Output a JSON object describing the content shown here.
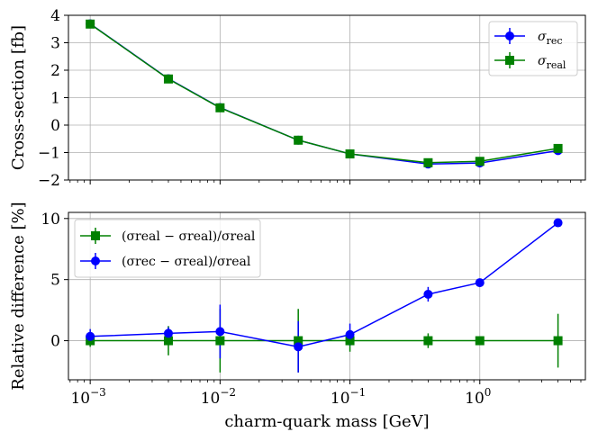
{
  "chart_data": [
    {
      "type": "line",
      "panel": "top",
      "title": "",
      "xlabel": "",
      "ylabel": "Cross-section [fb]",
      "xscale": "log",
      "xlim": [
        0.00068,
        6.5
      ],
      "ylim": [
        -2,
        4
      ],
      "yticks": [
        -2,
        -1,
        0,
        1,
        2,
        3,
        4
      ],
      "ytick_labels": [
        "−2",
        "−1",
        "0",
        "1",
        "2",
        "3",
        "4"
      ],
      "xticks": [
        0.001,
        0.01,
        0.1,
        1
      ],
      "grid": true,
      "legend_position": "upper right",
      "x": [
        0.001,
        0.004,
        0.01,
        0.04,
        0.1,
        0.4,
        1,
        4
      ],
      "series": [
        {
          "name": "σ_rec",
          "label_main": "σ",
          "label_sub": "rec",
          "color": "#0000ff",
          "marker": "circle",
          "values": [
            3.69,
            1.69,
            0.64,
            -0.55,
            -1.05,
            -1.42,
            -1.38,
            -0.93
          ],
          "errors": [
            0.03,
            0.03,
            0.03,
            0.03,
            0.03,
            0.03,
            0.03,
            0.03
          ]
        },
        {
          "name": "σ_real",
          "label_main": "σ",
          "label_sub": "real",
          "color": "#008000",
          "marker": "square",
          "values": [
            3.68,
            1.68,
            0.63,
            -0.55,
            -1.05,
            -1.37,
            -1.32,
            -0.85
          ],
          "errors": [
            0.03,
            0.03,
            0.03,
            0.03,
            0.03,
            0.03,
            0.03,
            0.03
          ]
        }
      ]
    },
    {
      "type": "line",
      "panel": "bottom",
      "title": "",
      "xlabel": "charm-quark mass [GeV]",
      "ylabel": "Relative difference [%]",
      "xscale": "log",
      "xlim": [
        0.00068,
        6.5
      ],
      "ylim": [
        -3.2,
        10.5
      ],
      "yticks": [
        0,
        5,
        10
      ],
      "ytick_labels": [
        "0",
        "5",
        "10"
      ],
      "xticks": [
        0.001,
        0.01,
        0.1,
        1
      ],
      "xtick_labels": [
        {
          "base": "10",
          "exp": "−3"
        },
        {
          "base": "10",
          "exp": "−2"
        },
        {
          "base": "10",
          "exp": "−1"
        },
        {
          "base": "10",
          "exp": "0"
        }
      ],
      "grid": true,
      "legend_position": "upper left",
      "x": [
        0.001,
        0.004,
        0.01,
        0.04,
        0.1,
        0.4,
        1,
        4
      ],
      "series": [
        {
          "name": "(σ_real − σ_real)/σ_real",
          "label_text": "(σreal − σreal)/σreal",
          "color": "#008000",
          "marker": "square",
          "values": [
            0,
            0,
            0,
            0,
            0,
            0,
            0,
            0
          ],
          "errors": [
            0.5,
            1.2,
            2.6,
            2.6,
            0.9,
            0.6,
            0.2,
            2.2
          ]
        },
        {
          "name": "(σ_rec − σ_real)/σ_real",
          "label_text": "(σrec − σreal)/σreal",
          "color": "#0000ff",
          "marker": "circle",
          "values": [
            0.35,
            0.6,
            0.75,
            -0.5,
            0.5,
            3.8,
            4.75,
            9.65
          ],
          "errors": [
            0.6,
            0.5,
            2.2,
            2.1,
            0.9,
            0.6,
            0.2,
            0.2
          ]
        }
      ]
    }
  ]
}
